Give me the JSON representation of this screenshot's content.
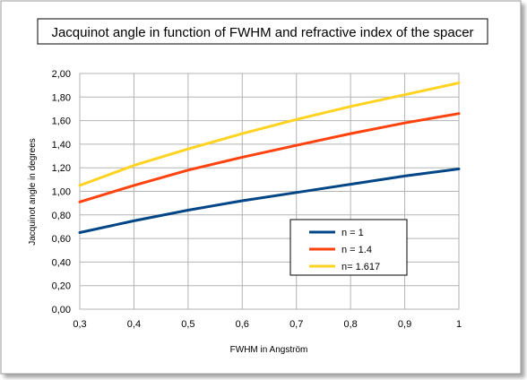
{
  "chart_data": {
    "type": "line",
    "title": "Jacquinot angle in function of FWHM and refractive index of the spacer",
    "xlabel": "FWHM in Angström",
    "ylabel": "Jacquinot angle in degrees",
    "xlim": [
      0.3,
      1.0
    ],
    "ylim": [
      0.0,
      2.0
    ],
    "x_ticks": [
      "0,3",
      "0,4",
      "0,5",
      "0,6",
      "0,7",
      "0,8",
      "0,9",
      "1"
    ],
    "y_ticks": [
      "0,00",
      "0,20",
      "0,40",
      "0,60",
      "0,80",
      "1,00",
      "1,20",
      "1,40",
      "1,60",
      "1,80",
      "2,00"
    ],
    "grid": true,
    "legend_position": "bottom-right",
    "x": [
      0.3,
      0.4,
      0.5,
      0.6,
      0.7,
      0.8,
      0.9,
      1.0
    ],
    "series": [
      {
        "name": "n = 1",
        "color": "#004586",
        "values": [
          0.65,
          0.75,
          0.84,
          0.92,
          0.99,
          1.06,
          1.13,
          1.19
        ]
      },
      {
        "name": "n = 1.4",
        "color": "#ff420e",
        "values": [
          0.91,
          1.05,
          1.18,
          1.29,
          1.39,
          1.49,
          1.58,
          1.66
        ]
      },
      {
        "name": "n= 1.617",
        "color": "#ffd320",
        "values": [
          1.05,
          1.22,
          1.36,
          1.49,
          1.61,
          1.72,
          1.82,
          1.92
        ]
      }
    ]
  }
}
